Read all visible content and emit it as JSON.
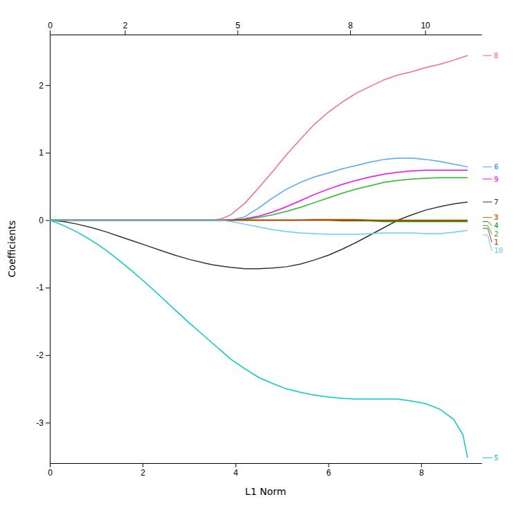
{
  "chart_data": {
    "type": "line",
    "xlabel": "L1 Norm",
    "ylabel": "Coefficients",
    "xlim": [
      0,
      9.3
    ],
    "xticks": [
      0,
      2,
      4,
      6,
      8
    ],
    "x2lim": [
      0,
      11.5
    ],
    "x2ticks": [
      0,
      2,
      5,
      8,
      10
    ],
    "ylim": [
      -3.6,
      2.75
    ],
    "yticks": [
      -3,
      -2,
      -1,
      0,
      1,
      2
    ],
    "grid": false,
    "series": [
      {
        "color": "#FF6B8A",
        "x": [
          0,
          0.3,
          0.6,
          0.9,
          1.2,
          1.5,
          1.8,
          2.1,
          2.4,
          2.7,
          3.0,
          3.3,
          3.5,
          3.7,
          3.9,
          4.2,
          4.5,
          4.8,
          5.1,
          5.4,
          5.7,
          6.0,
          6.3,
          6.6,
          6.9,
          7.2,
          7.5,
          7.8,
          8.1,
          8.4,
          8.7,
          9.0
        ],
        "values": [
          0,
          0,
          0,
          0,
          0,
          0,
          0,
          0,
          0,
          0,
          0,
          0,
          0,
          0.02,
          0.08,
          0.25,
          0.48,
          0.72,
          0.97,
          1.2,
          1.42,
          1.6,
          1.75,
          1.88,
          1.98,
          2.08,
          2.15,
          2.2,
          2.26,
          2.31,
          2.37,
          2.44
        ]
      },
      {
        "color": "#4DA6FF",
        "x": [
          0,
          0.3,
          0.6,
          0.9,
          1.2,
          1.5,
          1.8,
          2.1,
          2.4,
          2.7,
          3.0,
          3.3,
          3.5,
          3.7,
          3.9,
          4.2,
          4.5,
          4.8,
          5.1,
          5.4,
          5.7,
          6.0,
          6.3,
          6.6,
          6.9,
          7.2,
          7.5,
          7.8,
          8.1,
          8.4,
          8.7,
          9.0
        ],
        "values": [
          0,
          0,
          0,
          0,
          0,
          0,
          0,
          0,
          0,
          0,
          0,
          0,
          0,
          0,
          0,
          0.05,
          0.18,
          0.33,
          0.46,
          0.56,
          0.64,
          0.7,
          0.76,
          0.81,
          0.86,
          0.9,
          0.92,
          0.92,
          0.9,
          0.87,
          0.83,
          0.79
        ]
      },
      {
        "color": "#FF00FF",
        "x": [
          0,
          0.3,
          0.6,
          0.9,
          1.2,
          1.5,
          1.8,
          2.1,
          2.4,
          2.7,
          3.0,
          3.3,
          3.5,
          3.7,
          3.9,
          4.2,
          4.5,
          4.8,
          5.1,
          5.4,
          5.7,
          6.0,
          6.3,
          6.6,
          6.9,
          7.2,
          7.5,
          7.8,
          8.1,
          8.4,
          8.7,
          9.0
        ],
        "values": [
          0,
          0,
          0,
          0,
          0,
          0,
          0,
          0,
          0,
          0,
          0,
          0,
          0,
          0,
          0,
          0.02,
          0.06,
          0.12,
          0.2,
          0.29,
          0.38,
          0.46,
          0.53,
          0.59,
          0.64,
          0.68,
          0.71,
          0.73,
          0.74,
          0.74,
          0.74,
          0.74
        ]
      },
      {
        "color": "#22BB22",
        "x": [
          0,
          0.3,
          0.6,
          0.9,
          1.2,
          1.5,
          1.8,
          2.1,
          2.4,
          2.7,
          3.0,
          3.3,
          3.5,
          3.7,
          3.9,
          4.2,
          4.5,
          4.8,
          5.1,
          5.4,
          5.7,
          6.0,
          6.3,
          6.6,
          6.9,
          7.2,
          7.5,
          7.8,
          8.1,
          8.4,
          8.7,
          9.0
        ],
        "values": [
          0,
          0,
          0,
          0,
          0,
          0,
          0,
          0,
          0,
          0,
          0,
          0,
          0,
          0,
          0,
          0.01,
          0.04,
          0.08,
          0.13,
          0.19,
          0.26,
          0.33,
          0.4,
          0.46,
          0.51,
          0.56,
          0.59,
          0.61,
          0.62,
          0.63,
          0.63,
          0.63
        ]
      },
      {
        "color": "#333333",
        "x": [
          0,
          0.3,
          0.6,
          0.9,
          1.2,
          1.5,
          1.8,
          2.1,
          2.4,
          2.7,
          3.0,
          3.3,
          3.5,
          3.7,
          3.9,
          4.2,
          4.5,
          4.8,
          5.1,
          5.4,
          5.7,
          6.0,
          6.3,
          6.6,
          6.9,
          7.2,
          7.5,
          7.8,
          8.1,
          8.4,
          8.7,
          9.0
        ],
        "values": [
          0,
          -0.02,
          -0.06,
          -0.11,
          -0.17,
          -0.24,
          -0.31,
          -0.38,
          -0.45,
          -0.52,
          -0.58,
          -0.63,
          -0.66,
          -0.68,
          -0.7,
          -0.72,
          -0.72,
          -0.71,
          -0.69,
          -0.65,
          -0.59,
          -0.52,
          -0.43,
          -0.33,
          -0.22,
          -0.11,
          0.0,
          0.08,
          0.15,
          0.2,
          0.24,
          0.27
        ]
      },
      {
        "color": "#CC6600",
        "x": [
          0,
          0.3,
          0.6,
          0.9,
          1.2,
          1.5,
          1.8,
          2.1,
          2.4,
          2.7,
          3.0,
          3.3,
          3.5,
          3.7,
          3.9,
          4.2,
          4.5,
          4.8,
          5.1,
          5.4,
          5.7,
          6.0,
          6.3,
          6.6,
          6.9,
          7.2,
          7.5,
          7.8,
          8.1,
          8.4,
          8.7,
          9.0
        ],
        "values": [
          0,
          0,
          0,
          0,
          0,
          0,
          0,
          0,
          0,
          0,
          0,
          0,
          0,
          0,
          0,
          0,
          0,
          0,
          0,
          0,
          0.01,
          0.01,
          0.01,
          0.01,
          0.0,
          -0.01,
          -0.01,
          -0.01,
          -0.01,
          -0.01,
          -0.01,
          -0.01
        ]
      },
      {
        "color": "#009900",
        "x": [
          0,
          0.3,
          0.6,
          0.9,
          1.2,
          1.5,
          1.8,
          2.1,
          2.4,
          2.7,
          3.0,
          3.3,
          3.5,
          3.7,
          3.9,
          4.2,
          4.5,
          4.8,
          5.1,
          5.4,
          5.7,
          6.0,
          6.3,
          6.6,
          6.9,
          7.2,
          7.5,
          7.8,
          8.1,
          8.4,
          8.7,
          9.0
        ],
        "values": [
          0,
          0,
          0,
          0,
          0,
          0,
          0,
          0,
          0,
          0,
          0,
          0,
          0,
          0,
          0,
          0,
          0,
          0,
          0,
          0,
          0,
          0,
          -0.01,
          -0.01,
          -0.01,
          -0.02,
          -0.02,
          -0.02,
          -0.02,
          -0.02,
          -0.02,
          -0.02
        ]
      },
      {
        "color": "#CC3300",
        "x": [
          0,
          0.3,
          0.6,
          0.9,
          1.2,
          1.5,
          1.8,
          2.1,
          2.4,
          2.7,
          3.0,
          3.3,
          3.5,
          3.7,
          3.9,
          4.2,
          4.5,
          4.8,
          5.1,
          5.4,
          5.7,
          6.0,
          6.3,
          6.6,
          6.9,
          7.2,
          7.5,
          7.8,
          8.1,
          8.4,
          8.7,
          9.0
        ],
        "values": [
          0,
          0,
          0,
          0,
          0,
          0,
          0,
          0,
          0,
          0,
          0,
          0,
          0,
          0,
          0,
          0,
          0,
          0,
          0,
          0,
          0,
          0,
          0,
          0.0,
          0.0,
          0.0,
          0.0,
          0.0,
          0.0,
          0.0,
          0.0,
          0.0
        ]
      },
      {
        "color": "#66CCFF",
        "x": [
          0,
          0.3,
          0.6,
          0.9,
          1.2,
          1.5,
          1.8,
          2.1,
          2.4,
          2.7,
          3.0,
          3.3,
          3.5,
          3.7,
          3.9,
          4.2,
          4.5,
          4.8,
          5.1,
          5.4,
          5.7,
          6.0,
          6.3,
          6.6,
          6.9,
          7.2,
          7.5,
          7.8,
          8.1,
          8.4,
          8.7,
          9.0
        ],
        "values": [
          0,
          0,
          0,
          0,
          0,
          0,
          0,
          0,
          0,
          0,
          0,
          0,
          0,
          0,
          -0.02,
          -0.06,
          -0.1,
          -0.14,
          -0.17,
          -0.19,
          -0.2,
          -0.21,
          -0.21,
          -0.21,
          -0.2,
          -0.19,
          -0.19,
          -0.19,
          -0.2,
          -0.2,
          -0.18,
          -0.15
        ]
      },
      {
        "color": "#00CCCC",
        "x": [
          0,
          0.3,
          0.6,
          0.9,
          1.2,
          1.5,
          1.8,
          2.1,
          2.4,
          2.7,
          3.0,
          3.3,
          3.5,
          3.7,
          3.9,
          4.2,
          4.5,
          4.8,
          5.1,
          5.4,
          5.7,
          6.0,
          6.3,
          6.6,
          6.9,
          7.2,
          7.5,
          7.8,
          8.1,
          8.4,
          8.7,
          8.9,
          9.0
        ],
        "values": [
          0,
          -0.08,
          -0.18,
          -0.3,
          -0.44,
          -0.6,
          -0.77,
          -0.95,
          -1.14,
          -1.33,
          -1.52,
          -1.7,
          -1.82,
          -1.94,
          -2.06,
          -2.2,
          -2.33,
          -2.42,
          -2.5,
          -2.55,
          -2.59,
          -2.62,
          -2.64,
          -2.65,
          -2.65,
          -2.65,
          -2.65,
          -2.68,
          -2.72,
          -2.8,
          -2.95,
          -3.18,
          -3.52
        ]
      }
    ],
    "annotations": [
      {
        "text": "8",
        "y": 2.44,
        "color": "#FF6B8A",
        "bold": false
      },
      {
        "text": "6",
        "y": 0.79,
        "color": "#4DA6FF",
        "bold": true
      },
      {
        "text": "9",
        "y": 0.61,
        "color": "#FF00FF",
        "bold": false
      },
      {
        "text": "7",
        "y": 0.27,
        "color": "#333333",
        "bold": false
      },
      {
        "text": "3",
        "y": 0.04,
        "color": "#CC6600",
        "bold": true
      },
      {
        "text": "4",
        "y": -0.02,
        "color": "#009900",
        "bold": false
      },
      {
        "text": "2",
        "y": -0.08,
        "color": "#22BB22",
        "bold": false
      },
      {
        "text": "1",
        "y": -0.12,
        "color": "#CC3300",
        "bold": false
      },
      {
        "text": "10",
        "y": -0.22,
        "color": "#66CCFF",
        "bold": false
      },
      {
        "text": "5",
        "y": -3.52,
        "color": "#00CCCC",
        "bold": false
      }
    ]
  }
}
